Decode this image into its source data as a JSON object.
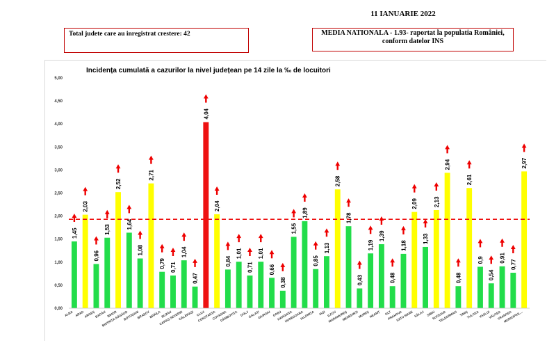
{
  "header": {
    "date": "11 IANUARIE 2022",
    "increase_text": "Total judete care au inregistrat crestere: 42",
    "national_line1": "MEDIA NATIONALA - 1.93-  raportat la populatia României,",
    "national_line2": "conform datelor INS"
  },
  "colors": {
    "green": "#22dd4a",
    "yellow": "#ffff00",
    "red": "#ee1111",
    "arrow": "#ee0000",
    "border": "#c00000"
  },
  "chart_data": {
    "type": "bar",
    "title": "Incidența cumulată a cazurilor la nivel județean pe 14 zile la ‰ de locuitori",
    "ylim": [
      0,
      5
    ],
    "yticks": [
      "0,00",
      "0,50",
      "1,00",
      "1,50",
      "2,00",
      "2,50",
      "3,00",
      "3,50",
      "4,00",
      "4,50",
      "5,00"
    ],
    "reference_line": 1.93,
    "categories": [
      "ALBA",
      "ARAD",
      "ARGEȘ",
      "BACĂU",
      "BIHOR",
      "BISTRIȚA-NĂSĂUD",
      "BOTOȘANI",
      "BRAȘOV",
      "BRĂILA",
      "BUZĂU",
      "CARAȘ-SEVERIN",
      "CĂLĂRAȘI",
      "CLUJ",
      "CONSTANȚA",
      "COVASNA",
      "DÂMBOVIȚA",
      "DOLJ",
      "GALAȚI",
      "GIURGIU",
      "GORJ",
      "HARGHITA",
      "HUNEDOARA",
      "IALOMIȚA",
      "IAȘI",
      "ILFOV",
      "MARAMUREȘ",
      "MEHEDINȚI",
      "MUREȘ",
      "NEAMȚ",
      "OLT",
      "PRAHOVA",
      "SATU MARE",
      "SĂLAJ",
      "SIBIU",
      "SUCEAVA",
      "TELEORMAN",
      "TIMIȘ",
      "TULCEA",
      "VASLUI",
      "VÂLCEA",
      "VRANCEA",
      "MUNICIPIUL..."
    ],
    "values": [
      1.45,
      2.03,
      0.96,
      1.53,
      2.52,
      1.64,
      1.08,
      2.71,
      0.79,
      0.71,
      1.04,
      0.47,
      4.04,
      2.04,
      0.84,
      1.01,
      0.71,
      1.01,
      0.66,
      0.38,
      1.55,
      1.89,
      0.85,
      1.13,
      2.58,
      1.78,
      0.43,
      1.19,
      1.39,
      0.48,
      1.18,
      2.09,
      1.33,
      2.13,
      2.94,
      0.48,
      2.61,
      0.9,
      0.54,
      0.91,
      0.77,
      2.97
    ],
    "labels": [
      "1,45",
      "2,03",
      "0,96",
      "1,53",
      "2,52",
      "1,64",
      "1,08",
      "2,71",
      "0,79",
      "0,71",
      "1,04",
      "0,47",
      "4,04",
      "2,04",
      "0,84",
      "1,01",
      "0,71",
      "1,01",
      "0,66",
      "0,38",
      "1,55",
      "1,89",
      "0,85",
      "1,13",
      "2,58",
      "1,78",
      "0,43",
      "1,19",
      "1,39",
      "0,48",
      "1,18",
      "2,09",
      "1,33",
      "2,13",
      "2,94",
      "0,48",
      "2,61",
      "0,9",
      "0,54",
      "0,91",
      "0,77",
      "2,97"
    ],
    "grid": false,
    "legend": "none"
  }
}
